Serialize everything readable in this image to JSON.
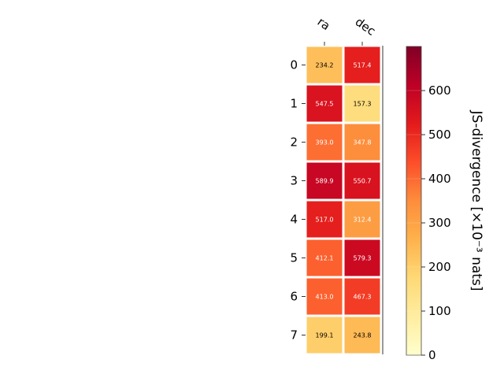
{
  "chart_data": {
    "type": "heatmap",
    "columns": [
      "ra",
      "dec"
    ],
    "rows": [
      "0",
      "1",
      "2",
      "3",
      "4",
      "5",
      "6",
      "7"
    ],
    "values": [
      [
        234.2,
        517.4
      ],
      [
        547.5,
        157.3
      ],
      [
        393.0,
        347.8
      ],
      [
        589.9,
        550.7
      ],
      [
        517.0,
        312.4
      ],
      [
        412.1,
        579.3
      ],
      [
        413.0,
        467.3
      ],
      [
        199.1,
        243.8
      ]
    ],
    "value_labels": [
      [
        "234.2",
        "517.4"
      ],
      [
        "547.5",
        "157.3"
      ],
      [
        "393.0",
        "347.8"
      ],
      [
        "589.9",
        "550.7"
      ],
      [
        "517.0",
        "312.4"
      ],
      [
        "412.1",
        "579.3"
      ],
      [
        "413.0",
        "467.3"
      ],
      [
        "199.1",
        "243.8"
      ]
    ],
    "colorbar": {
      "label": "JS-divergence [×10⁻³ nats]",
      "range": [
        0,
        700
      ],
      "ticks": [
        0,
        100,
        200,
        300,
        400,
        500,
        600
      ],
      "colormap": "YlOrRd"
    }
  }
}
